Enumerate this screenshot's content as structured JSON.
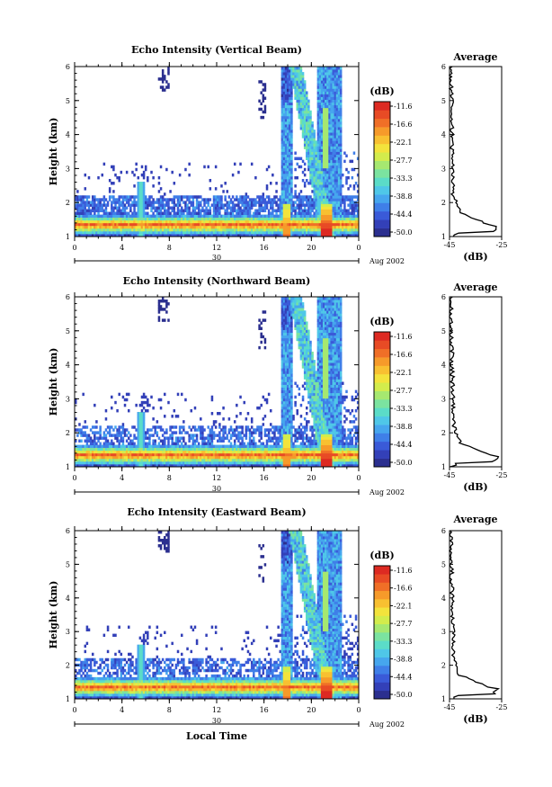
{
  "chart_data": [
    {
      "type": "heatmap",
      "title": "Echo Intensity (Vertical Beam)",
      "ylabel": "Height (km)",
      "xlabel": "",
      "x_ticks": [
        "0",
        "4",
        "8",
        "12",
        "16",
        "20",
        "0"
      ],
      "y_ticks": [
        "1",
        "2",
        "3",
        "4",
        "5",
        "6"
      ],
      "xlim": [
        0,
        24
      ],
      "ylim": [
        1,
        6
      ],
      "date_label": "30",
      "month_label": "Aug 2002",
      "colorbar": {
        "unit": "(dB)",
        "ticks": [
          "-11.6",
          "-16.6",
          "-22.1",
          "-27.7",
          "-33.3",
          "-38.8",
          "-44.4",
          "-50.0"
        ],
        "range": [
          -50.0,
          -11.6
        ]
      },
      "profile": {
        "title": "Average",
        "xlabel": "(dB)",
        "x_ticks": [
          "-45",
          "-25"
        ],
        "xlim": [
          -45,
          -25
        ],
        "ylim": [
          1,
          6
        ]
      }
    },
    {
      "type": "heatmap",
      "title": "Echo Intensity (Northward Beam)",
      "ylabel": "Height (km)",
      "xlabel": "",
      "x_ticks": [
        "0",
        "4",
        "8",
        "12",
        "16",
        "20",
        "0"
      ],
      "y_ticks": [
        "1",
        "2",
        "3",
        "4",
        "5",
        "6"
      ],
      "xlim": [
        0,
        24
      ],
      "ylim": [
        1,
        6
      ],
      "date_label": "30",
      "month_label": "Aug 2002",
      "colorbar": {
        "unit": "(dB)",
        "ticks": [
          "-11.6",
          "-16.6",
          "-22.1",
          "-27.7",
          "-33.3",
          "-38.8",
          "-44.4",
          "-50.0"
        ],
        "range": [
          -50.0,
          -11.6
        ]
      },
      "profile": {
        "title": "Average",
        "xlabel": "(dB)",
        "x_ticks": [
          "-45",
          "-25"
        ],
        "xlim": [
          -45,
          -25
        ],
        "ylim": [
          1,
          6
        ]
      }
    },
    {
      "type": "heatmap",
      "title": "Echo Intensity (Eastward Beam)",
      "ylabel": "Height (km)",
      "xlabel": "Local Time",
      "x_ticks": [
        "0",
        "4",
        "8",
        "12",
        "16",
        "20",
        "0"
      ],
      "y_ticks": [
        "1",
        "2",
        "3",
        "4",
        "5",
        "6"
      ],
      "xlim": [
        0,
        24
      ],
      "ylim": [
        1,
        6
      ],
      "date_label": "30",
      "month_label": "Aug 2002",
      "colorbar": {
        "unit": "(dB)",
        "ticks": [
          "-11.6",
          "-16.6",
          "-22.1",
          "-27.7",
          "-33.3",
          "-38.8",
          "-44.4",
          "-50.0"
        ],
        "range": [
          -50.0,
          -11.6
        ]
      },
      "profile": {
        "title": "Average",
        "xlabel": "(dB)",
        "x_ticks": [
          "-45",
          "-25"
        ],
        "xlim": [
          -45,
          -25
        ],
        "ylim": [
          1,
          6
        ]
      }
    }
  ],
  "colors": {
    "palette": [
      "#2b2f8f",
      "#3340b8",
      "#3a5ad8",
      "#3f7fe8",
      "#46a6ee",
      "#4fc7e8",
      "#5bdcc8",
      "#7be3a0",
      "#a6e870",
      "#d3ec4c",
      "#f3e33c",
      "#f8c031",
      "#f69a2a",
      "#f06f27",
      "#e84b25",
      "#dd2a22"
    ]
  }
}
